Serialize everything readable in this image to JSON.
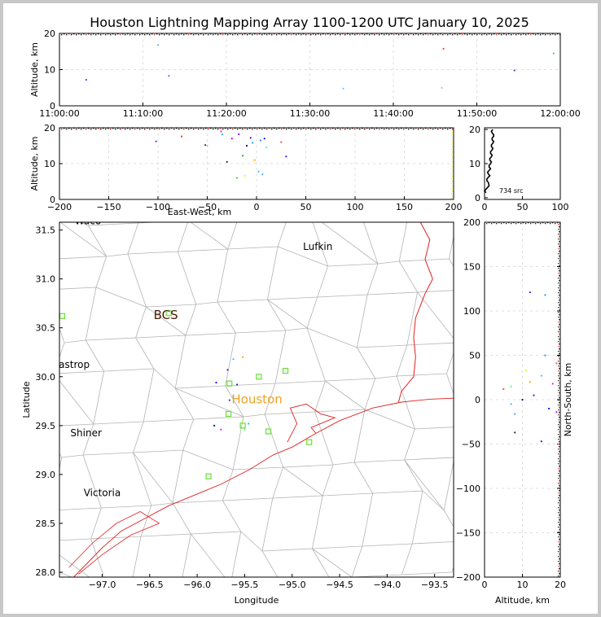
{
  "title": "Houston Lightning Mapping Array 1100-1200 UTC January 10, 2025",
  "chart_data": [
    {
      "id": "time-altitude",
      "type": "scatter",
      "ylabel": "Altitude, km",
      "xticks": [
        "11:00:00",
        "11:10:00",
        "11:20:00",
        "11:30:00",
        "11:40:00",
        "11:50:00",
        "12:00:00"
      ],
      "xlim_minutes": [
        0,
        60
      ],
      "ylim": [
        0,
        20
      ],
      "yticks": [
        0,
        10,
        20
      ],
      "grid": true,
      "points": [
        {
          "t": 3.2,
          "alt": 7.2,
          "c": "#3a3aff"
        },
        {
          "t": 11.8,
          "alt": 16.8,
          "c": "#60a0ff"
        },
        {
          "t": 13.1,
          "alt": 8.3,
          "c": "#4060ff"
        },
        {
          "t": 34.0,
          "alt": 4.8,
          "c": "#40c0ff"
        },
        {
          "t": 45.8,
          "alt": 5.0,
          "c": "#80e080"
        },
        {
          "t": 46.0,
          "alt": 15.8,
          "c": "#ff2020"
        },
        {
          "t": 54.5,
          "alt": 9.8,
          "c": "#2020c0"
        },
        {
          "t": 59.2,
          "alt": 14.5,
          "c": "#20c0c0"
        }
      ]
    },
    {
      "id": "ew-altitude",
      "type": "scatter",
      "xlabel": "East-West, km",
      "ylabel": "Altitude, km",
      "xlim": [
        -200,
        200
      ],
      "xticks": [
        -200,
        -150,
        -100,
        -50,
        0,
        50,
        100,
        150,
        200
      ],
      "ylim": [
        0,
        20
      ],
      "yticks": [
        0,
        10,
        20
      ],
      "points": [
        {
          "x": -102,
          "alt": 16.2,
          "c": "#4040ff"
        },
        {
          "x": -76,
          "alt": 17.6,
          "c": "#ff2020"
        },
        {
          "x": -52,
          "alt": 15.2,
          "c": "#2020c0"
        },
        {
          "x": -36,
          "alt": 19.0,
          "c": "#ff00ff"
        },
        {
          "x": -30,
          "alt": 10.5,
          "c": "#202020"
        },
        {
          "x": -25,
          "alt": 17.0,
          "c": "#c000c0"
        },
        {
          "x": -20,
          "alt": 6.0,
          "c": "#40c040"
        },
        {
          "x": -18,
          "alt": 18.2,
          "c": "#8000ff"
        },
        {
          "x": -14,
          "alt": 12.2,
          "c": "#20a020"
        },
        {
          "x": -12,
          "alt": 6.6,
          "c": "#c0ff40"
        },
        {
          "x": -10,
          "alt": 15.0,
          "c": "#000080"
        },
        {
          "x": -6,
          "alt": 17.2,
          "c": "#4000c0"
        },
        {
          "x": -4,
          "alt": 15.8,
          "c": "#00a0ff"
        },
        {
          "x": -2,
          "alt": 11.0,
          "c": "#ffa000"
        },
        {
          "x": 2,
          "alt": 7.8,
          "c": "#20c0ff"
        },
        {
          "x": 4,
          "alt": 16.5,
          "c": "#2080ff"
        },
        {
          "x": 6,
          "alt": 7.0,
          "c": "#40a0ff"
        },
        {
          "x": 8,
          "alt": 17.0,
          "c": "#0000ff"
        },
        {
          "x": 10,
          "alt": 14.5,
          "c": "#40ffa0"
        },
        {
          "x": 25,
          "alt": 16.0,
          "c": "#ff4040"
        },
        {
          "x": 30,
          "alt": 12.0,
          "c": "#2020ff"
        },
        {
          "x": -50,
          "alt": 15.0,
          "c": "#ffc000"
        },
        {
          "x": -35,
          "alt": 18.2,
          "c": "#00c0c0"
        }
      ]
    },
    {
      "id": "altitude-histogram",
      "type": "line",
      "annotation": "734 src",
      "xlim": [
        0,
        100
      ],
      "xticks": [
        0,
        50,
        100
      ],
      "ylim": [
        0,
        20
      ],
      "yticks": [
        0,
        10,
        20
      ],
      "profile": [
        {
          "alt": 1.5,
          "n": 2
        },
        {
          "alt": 3,
          "n": 4
        },
        {
          "alt": 4.5,
          "n": 5
        },
        {
          "alt": 5.5,
          "n": 3
        },
        {
          "alt": 6.5,
          "n": 7
        },
        {
          "alt": 7.5,
          "n": 4
        },
        {
          "alt": 8.5,
          "n": 8
        },
        {
          "alt": 9.5,
          "n": 6
        },
        {
          "alt": 10.5,
          "n": 9
        },
        {
          "alt": 11.5,
          "n": 7
        },
        {
          "alt": 12.5,
          "n": 10
        },
        {
          "alt": 13.5,
          "n": 8
        },
        {
          "alt": 14.5,
          "n": 11
        },
        {
          "alt": 15.5,
          "n": 9
        },
        {
          "alt": 16.5,
          "n": 12
        },
        {
          "alt": 17.5,
          "n": 10
        },
        {
          "alt": 18.5,
          "n": 12
        },
        {
          "alt": 19.5,
          "n": 9
        }
      ]
    },
    {
      "id": "plan-view",
      "type": "scatter",
      "xlabel": "Longitude",
      "ylabel": "Latitude",
      "xlim": [
        -97.45,
        -93.3
      ],
      "xticks": [
        -97.0,
        -96.5,
        -96.0,
        -95.5,
        -95.0,
        -94.5,
        -94.0,
        -93.5
      ],
      "xticklabels": [
        "−97.0",
        "−96.5",
        "−96.0",
        "−95.5",
        "−95.0",
        "−94.5",
        "−94.0",
        "−93.5"
      ],
      "ylim": [
        27.95,
        31.58
      ],
      "yticks": [
        28.0,
        28.5,
        29.0,
        29.5,
        30.0,
        30.5,
        31.0,
        31.5
      ],
      "cities": [
        {
          "name": "Lufkin",
          "lon": -94.73,
          "lat": 31.34,
          "c": "#000000",
          "size": 12
        },
        {
          "name": "BCS",
          "lon": -96.33,
          "lat": 30.63,
          "c": "#4a1a00",
          "size": 15
        },
        {
          "name": "Bastrop",
          "lon": -97.33,
          "lat": 30.13,
          "c": "#000000",
          "size": 12
        },
        {
          "name": "Houston",
          "lon": -95.37,
          "lat": 29.77,
          "c": "#f0a020",
          "size": 15
        },
        {
          "name": "Shiner",
          "lon": -97.17,
          "lat": 29.43,
          "c": "#000000",
          "size": 12
        },
        {
          "name": "Victoria",
          "lon": -97.0,
          "lat": 28.82,
          "c": "#000000",
          "size": 12
        },
        {
          "name": "Waco",
          "lon": -97.15,
          "lat": 31.6,
          "c": "#000000",
          "size": 12
        }
      ],
      "stations": [
        {
          "lon": -97.42,
          "lat": 30.62
        },
        {
          "lon": -96.3,
          "lat": 30.65
        },
        {
          "lon": -95.07,
          "lat": 30.06
        },
        {
          "lon": -95.35,
          "lat": 30.0
        },
        {
          "lon": -95.66,
          "lat": 29.93
        },
        {
          "lon": -95.67,
          "lat": 29.62
        },
        {
          "lon": -95.52,
          "lat": 29.5
        },
        {
          "lon": -95.25,
          "lat": 29.44
        },
        {
          "lon": -94.82,
          "lat": 29.33
        },
        {
          "lon": -95.88,
          "lat": 28.98
        }
      ],
      "points": [
        {
          "lon": -95.62,
          "lat": 30.18,
          "c": "#20c0ff"
        },
        {
          "lon": -95.68,
          "lat": 30.07,
          "c": "#2020c0"
        },
        {
          "lon": -95.8,
          "lat": 29.94,
          "c": "#0000ff"
        },
        {
          "lon": -95.58,
          "lat": 29.92,
          "c": "#202080"
        },
        {
          "lon": -95.62,
          "lat": 29.8,
          "c": "#40a0ff"
        },
        {
          "lon": -95.66,
          "lat": 29.76,
          "c": "#2020ff"
        },
        {
          "lon": -95.75,
          "lat": 29.46,
          "c": "#ff00ff"
        },
        {
          "lon": -95.82,
          "lat": 29.5,
          "c": "#000080"
        },
        {
          "lon": -95.46,
          "lat": 29.52,
          "c": "#00c0ff"
        },
        {
          "lon": -95.5,
          "lat": 29.46,
          "c": "#40ff80"
        },
        {
          "lon": -95.52,
          "lat": 29.56,
          "c": "#c0ff40"
        },
        {
          "lon": -95.52,
          "lat": 30.2,
          "c": "#ffa000"
        }
      ]
    },
    {
      "id": "altitude-ns",
      "type": "scatter",
      "xlabel": "Altitude, km",
      "ylabel": "North-South, km",
      "xlim": [
        0,
        20
      ],
      "xticks": [
        0,
        10,
        20
      ],
      "ylim": [
        -200,
        200
      ],
      "yticks": [
        -200,
        -150,
        -100,
        -50,
        0,
        50,
        100,
        150,
        200
      ],
      "points": [
        {
          "alt": 12,
          "ns": 121,
          "c": "#2020ff"
        },
        {
          "alt": 16,
          "ns": 118,
          "c": "#00a0ff"
        },
        {
          "alt": 16,
          "ns": 50,
          "c": "#2080ff"
        },
        {
          "alt": 15,
          "ns": 27,
          "c": "#40c0ff"
        },
        {
          "alt": 19,
          "ns": 41,
          "c": "#ff4040"
        },
        {
          "alt": 18,
          "ns": 18,
          "c": "#ff00ff"
        },
        {
          "alt": 11,
          "ns": 33,
          "c": "#c0ff40"
        },
        {
          "alt": 7,
          "ns": 15,
          "c": "#40ff80"
        },
        {
          "alt": 12,
          "ns": 20,
          "c": "#ffa000"
        },
        {
          "alt": 5,
          "ns": 12,
          "c": "#ff4040"
        },
        {
          "alt": 10,
          "ns": 0,
          "c": "#000080"
        },
        {
          "alt": 7,
          "ns": -5,
          "c": "#20c0ff"
        },
        {
          "alt": 13,
          "ns": 5,
          "c": "#2020c0"
        },
        {
          "alt": 17,
          "ns": -10,
          "c": "#0000ff"
        },
        {
          "alt": 8,
          "ns": -16,
          "c": "#40a0ff"
        },
        {
          "alt": 8,
          "ns": -37,
          "c": "#202020"
        },
        {
          "alt": 15,
          "ns": -47,
          "c": "#4000c0"
        },
        {
          "alt": 19,
          "ns": -14,
          "c": "#c000c0"
        }
      ]
    }
  ]
}
